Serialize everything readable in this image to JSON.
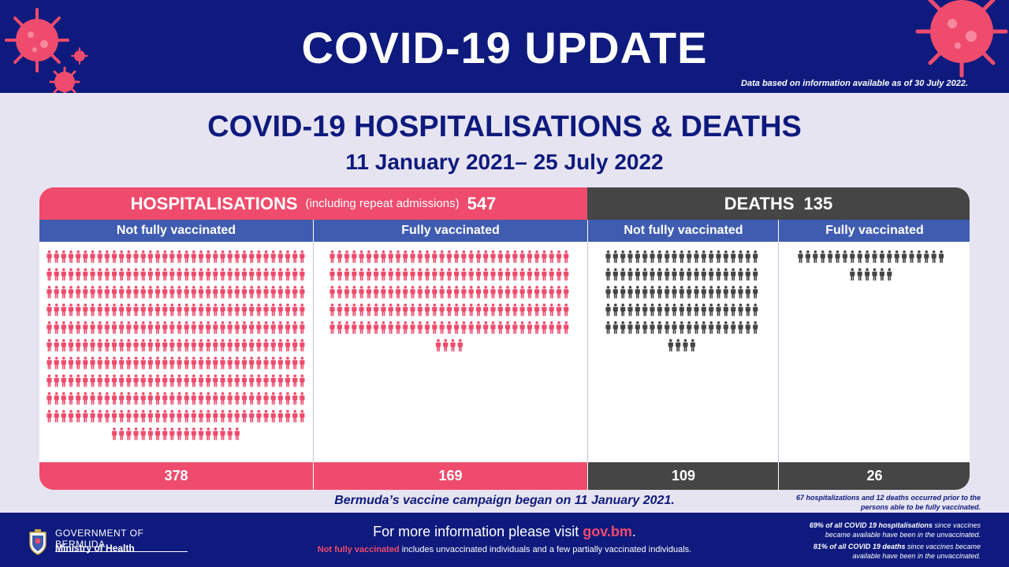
{
  "header": {
    "title": "COVID-19 UPDATE",
    "data_note": "Data based on information available as of 30 July 2022."
  },
  "panel": {
    "title": "COVID-19 HOSPITALISATIONS & DEATHS",
    "date_range": "11 January 2021– 25 July 2022"
  },
  "hospitalisations": {
    "label": "HOSPITALISATIONS",
    "note": "(including repeat admissions)",
    "total": "547",
    "not_fully_label": "Not fully vaccinated",
    "fully_label": "Fully vaccinated",
    "not_fully_count": "378",
    "fully_count": "169"
  },
  "deaths": {
    "label": "DEATHS",
    "total": "135",
    "not_fully_label": "Not fully vaccinated",
    "fully_label": "Fully vaccinated",
    "not_fully_count": "109",
    "fully_count": "26"
  },
  "campaign_note": "Bermuda’s vaccine campaign began on 11 January 2021.",
  "prior_note": "67 hospitalizations and 12 deaths occurred prior to the persons able to be fully vaccinated.",
  "footer": {
    "government": "GOVERNMENT OF BERMUDA",
    "ministry": "Ministry of Health",
    "more_info": "For more information please visit",
    "link": "gov.bm",
    "period": ".",
    "definition_highlight": "Not fully vaccinated",
    "definition_rest": " includes unvaccinated individuals and a few partially vaccinated individuals.",
    "stat1_bold": "69% of all COVID 19 hospitalisations",
    "stat1_rest": " since vaccines became available have been in the unvaccinated.",
    "stat2_bold": "81% of all COVID 19 deaths",
    "stat2_rest": " since vaccines became available have been in the unvaccinated."
  },
  "colors": {
    "navy": "#0e1a7d",
    "pink": "#ef4b6c",
    "dark_grey": "#454545",
    "blue": "#3f5cb0",
    "lavender": "#e7e4f2"
  },
  "icons": {
    "person": "person-icon",
    "virus": "virus-icon",
    "crest": "crest-icon"
  }
}
